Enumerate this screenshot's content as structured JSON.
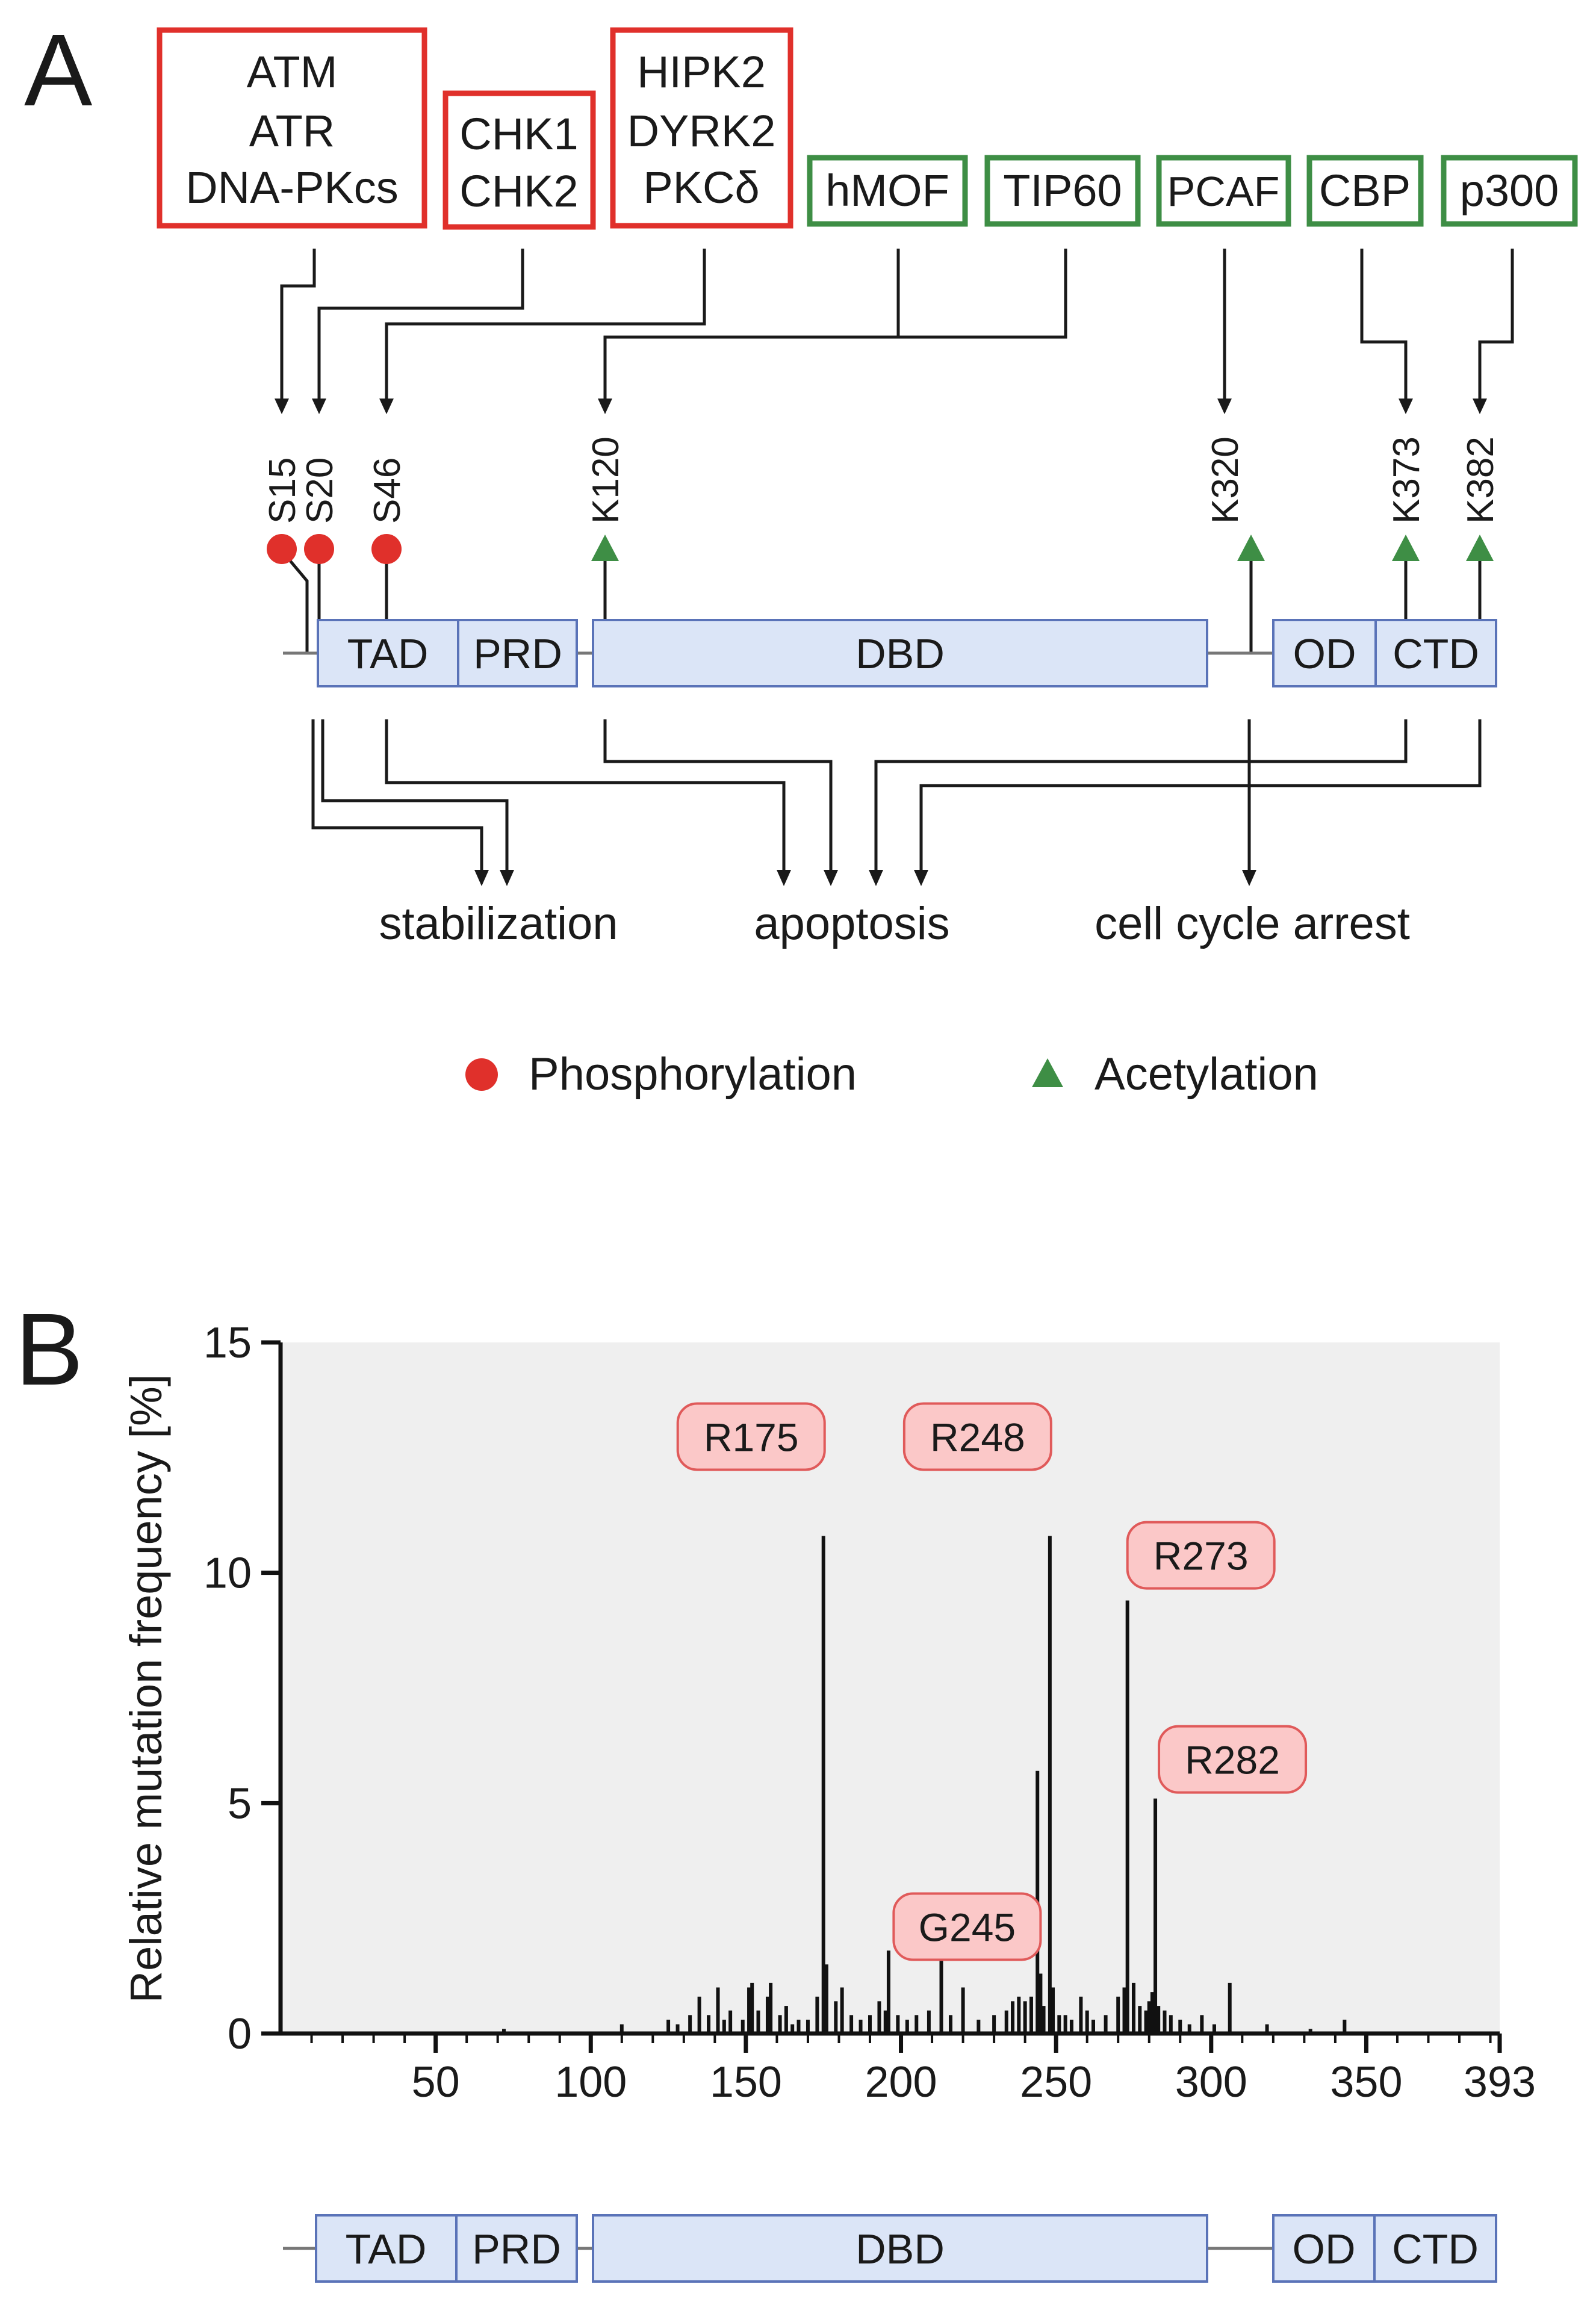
{
  "panel_a": {
    "label": "A",
    "kinase_boxes": [
      {
        "lines": [
          "ATM",
          "ATR",
          "DNA-PKcs"
        ],
        "color": "#e0302b"
      },
      {
        "lines": [
          "CHK1",
          "CHK2"
        ],
        "color": "#e0302b"
      },
      {
        "lines": [
          "HIPK2",
          "DYRK2",
          "PKCδ"
        ],
        "color": "#e0302b"
      }
    ],
    "acetyltransferase_boxes": [
      {
        "label": "hMOF",
        "color": "#3e8e45"
      },
      {
        "label": "TIP60",
        "color": "#3e8e45"
      },
      {
        "label": "PCAF",
        "color": "#3e8e45"
      },
      {
        "label": "CBP",
        "color": "#3e8e45"
      },
      {
        "label": "p300",
        "color": "#3e8e45"
      }
    ],
    "sites": [
      "S15",
      "S20",
      "S46",
      "K120",
      "K320",
      "K373",
      "K382"
    ],
    "domains": [
      "TAD",
      "PRD",
      "DBD",
      "OD",
      "CTD"
    ],
    "outcomes": [
      "stabilization",
      "apoptosis",
      "cell cycle arrest"
    ],
    "legend": {
      "phosphorylation": "Phosphorylation",
      "acetylation": "Acetylation",
      "phospho_color": "#e0302b",
      "acetyl_color": "#3e8e45"
    }
  },
  "panel_b": {
    "label": "B",
    "domains": [
      "TAD",
      "PRD",
      "DBD",
      "OD",
      "CTD"
    ]
  },
  "colors": {
    "domain_fill": "#dbe5f7",
    "domain_stroke": "#5a73b8",
    "plot_bg": "#efefef",
    "hotspot_fill": "#fbc8c8",
    "hotspot_stroke": "#e05a5a"
  },
  "chart_data": {
    "type": "bar",
    "title": "",
    "xlabel": "",
    "ylabel": "Relative mutation frequency [%]",
    "xlim": [
      0,
      393
    ],
    "ylim": [
      0,
      15
    ],
    "xticks": [
      50,
      100,
      150,
      200,
      250,
      300,
      350,
      393
    ],
    "yticks": [
      0,
      5,
      10,
      15
    ],
    "grid": false,
    "positions": [
      72,
      110,
      125,
      128,
      132,
      135,
      138,
      141,
      143,
      145,
      149,
      151,
      152,
      154,
      157,
      158,
      161,
      163,
      165,
      167,
      170,
      173,
      175,
      176,
      179,
      181,
      184,
      187,
      190,
      193,
      195,
      196,
      199,
      202,
      205,
      209,
      213,
      216,
      220,
      225,
      230,
      234,
      236,
      238,
      240,
      242,
      244,
      245,
      246,
      248,
      249,
      251,
      253,
      255,
      258,
      260,
      262,
      266,
      270,
      272,
      273,
      275,
      277,
      279,
      280,
      281,
      282,
      283,
      285,
      287,
      290,
      293,
      297,
      301,
      306,
      318,
      332,
      343
    ],
    "values": [
      0.1,
      0.2,
      0.3,
      0.2,
      0.4,
      0.8,
      0.4,
      1.0,
      0.3,
      0.5,
      0.3,
      1.0,
      1.1,
      0.5,
      0.8,
      1.1,
      0.4,
      0.6,
      0.2,
      0.3,
      0.3,
      0.8,
      10.8,
      1.5,
      0.7,
      1.0,
      0.4,
      0.3,
      0.4,
      0.7,
      0.5,
      1.8,
      0.4,
      0.3,
      0.4,
      0.5,
      2.4,
      0.4,
      1.0,
      0.3,
      0.4,
      0.5,
      0.7,
      0.8,
      0.7,
      0.8,
      5.7,
      1.3,
      0.6,
      10.8,
      1.0,
      0.4,
      0.4,
      0.3,
      0.8,
      0.5,
      0.3,
      0.4,
      0.8,
      1.0,
      9.4,
      1.1,
      0.6,
      0.5,
      0.7,
      0.9,
      5.1,
      0.6,
      0.5,
      0.4,
      0.3,
      0.2,
      0.4,
      0.2,
      1.1,
      0.2,
      0.1,
      0.3
    ],
    "annotations": [
      {
        "label": "R175",
        "position": 175
      },
      {
        "label": "R248",
        "position": 248
      },
      {
        "label": "R273",
        "position": 273
      },
      {
        "label": "G245",
        "position": 245
      },
      {
        "label": "R282",
        "position": 282
      }
    ]
  }
}
